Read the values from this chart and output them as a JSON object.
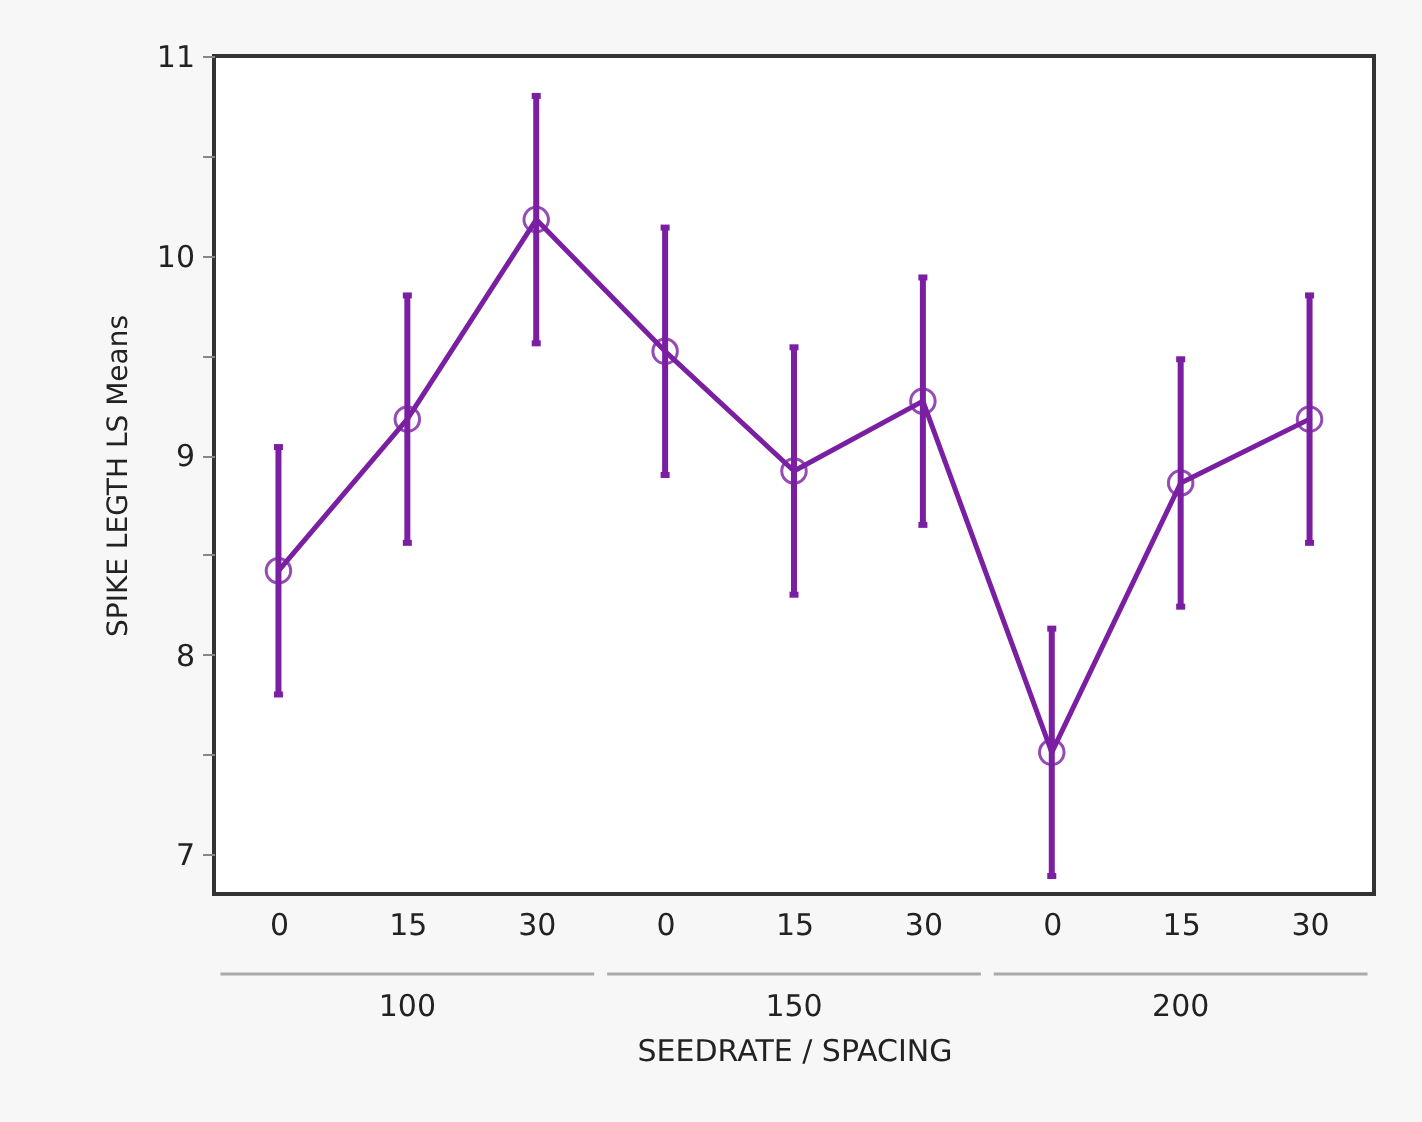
{
  "chart_data": {
    "type": "line",
    "xlabel": "SEEDRATE / SPACING",
    "ylabel": "SPIKE LEGTH LS Means",
    "categories": [
      "0",
      "15",
      "30",
      "0",
      "15",
      "30",
      "0",
      "15",
      "30"
    ],
    "values": [
      8.42,
      9.18,
      10.18,
      9.52,
      8.92,
      9.27,
      7.51,
      8.86,
      9.18
    ],
    "errors": [
      0.62,
      0.62,
      0.62,
      0.62,
      0.62,
      0.62,
      0.62,
      0.62,
      0.62
    ],
    "color": "#7b1fa2",
    "marker": "circle",
    "ylim": [
      6.8,
      11
    ],
    "yticks": [
      7,
      {
        "value": 7.5,
        "label": null
      },
      8,
      {
        "value": 8.5,
        "label": null
      },
      9,
      {
        "value": 9.5,
        "label": null
      },
      10,
      {
        "value": 10.5,
        "label": null
      },
      11
    ],
    "annotations": [
      "100",
      "150",
      "200"
    ]
  }
}
